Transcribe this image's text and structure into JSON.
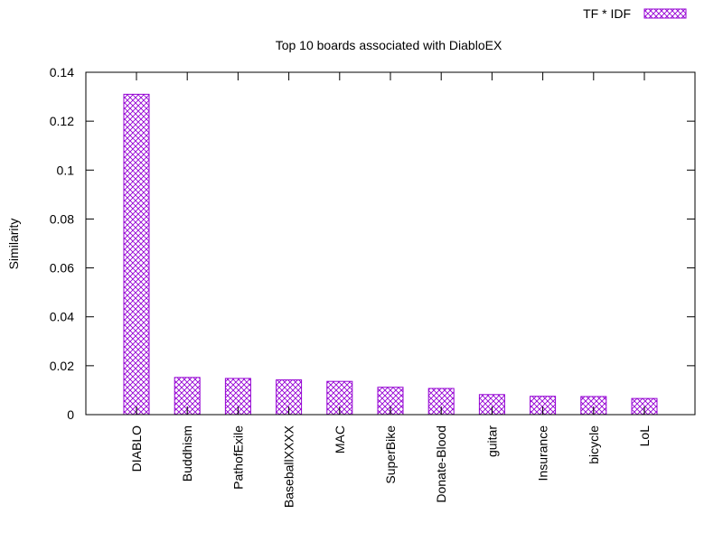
{
  "chart_data": {
    "type": "bar",
    "title": "Top 10 boards associated with DiabloEX",
    "xlabel": "",
    "ylabel": "Similarity",
    "ylim": [
      0,
      0.14
    ],
    "yticks": [
      "0",
      "0.02",
      "0.04",
      "0.06",
      "0.08",
      "0.1",
      "0.12",
      "0.14"
    ],
    "categories": [
      "DIABLO",
      "Buddhism",
      "PathofExile",
      "BaseballXXXX",
      "MAC",
      "SuperBike",
      "Donate-Blood",
      "guitar",
      "Insurance",
      "bicycle",
      "LoL"
    ],
    "series": [
      {
        "name": "TF * IDF",
        "values": [
          0.131,
          0.0152,
          0.0148,
          0.0142,
          0.0136,
          0.0112,
          0.0107,
          0.0082,
          0.0075,
          0.0074,
          0.0066
        ]
      }
    ],
    "colors": {
      "bar": "#9400d3",
      "axis": "#000000"
    },
    "legend_position": "top-right",
    "grid": false
  }
}
